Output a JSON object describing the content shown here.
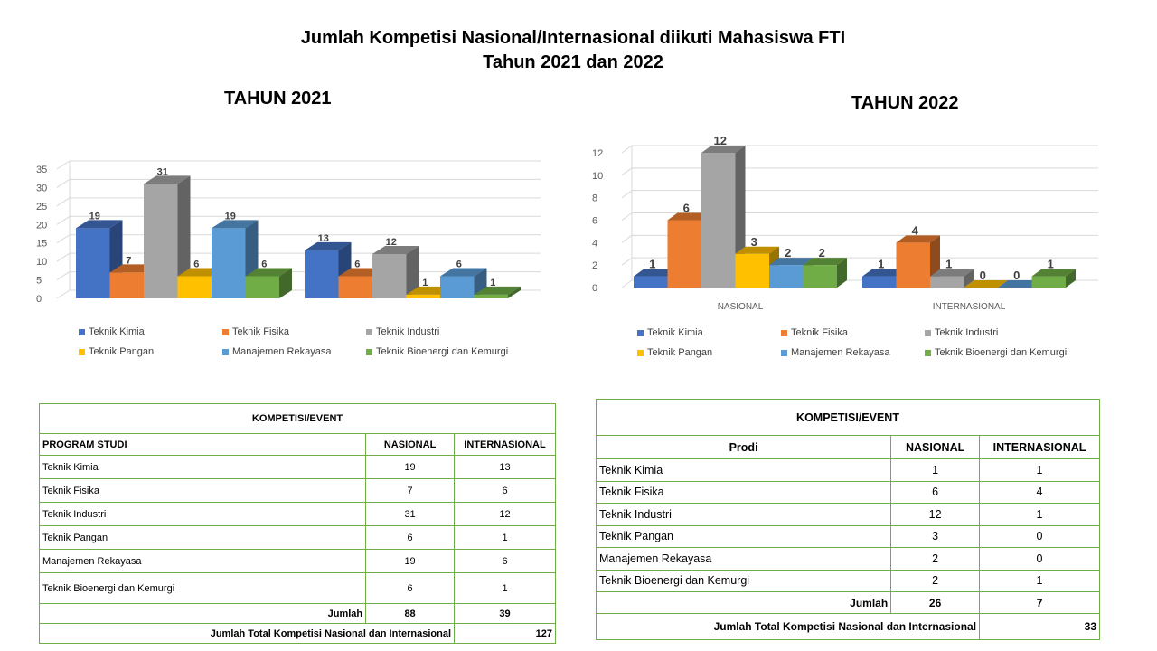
{
  "main_title": {
    "line1": "Jumlah Kompetisi Nasional/Internasional diikuti Mahasiswa FTI",
    "line2": "Tahun 2021 dan 2022"
  },
  "legend_labels": [
    "Teknik Kimia",
    "Teknik Fisika",
    "Teknik Industri",
    "Teknik Pangan",
    "Manajemen Rekayasa",
    "Teknik Bioenergi dan Kemurgi"
  ],
  "series_colors": [
    "#4472c4",
    "#ed7d31",
    "#a5a5a5",
    "#ffc000",
    "#5b9bd5",
    "#70ad47"
  ],
  "chart_data": [
    {
      "type": "bar",
      "title": "TAHUN 2021",
      "categories": [
        "",
        ""
      ],
      "series": [
        {
          "name": "Teknik Kimia",
          "values": [
            19,
            13
          ]
        },
        {
          "name": "Teknik Fisika",
          "values": [
            7,
            6
          ]
        },
        {
          "name": "Teknik Industri",
          "values": [
            31,
            12
          ]
        },
        {
          "name": "Teknik Pangan",
          "values": [
            6,
            1
          ]
        },
        {
          "name": "Manajemen Rekayasa",
          "values": [
            19,
            6
          ]
        },
        {
          "name": "Teknik Bioenergi dan Kemurgi",
          "values": [
            6,
            1
          ]
        }
      ],
      "ylim": [
        0,
        35
      ],
      "yticks": [
        0,
        5,
        10,
        15,
        20,
        25,
        30,
        35
      ],
      "grid": true,
      "legend": "bottom",
      "style": "3d-clustered-column"
    },
    {
      "type": "bar",
      "title": "TAHUN 2022",
      "categories": [
        "NASIONAL",
        "INTERNASIONAL"
      ],
      "series": [
        {
          "name": "Teknik Kimia",
          "values": [
            1,
            1
          ]
        },
        {
          "name": "Teknik Fisika",
          "values": [
            6,
            4
          ]
        },
        {
          "name": "Teknik Industri",
          "values": [
            12,
            1
          ]
        },
        {
          "name": "Teknik Pangan",
          "values": [
            3,
            0
          ]
        },
        {
          "name": "Manajemen Rekayasa",
          "values": [
            2,
            0
          ]
        },
        {
          "name": "Teknik Bioenergi dan Kemurgi",
          "values": [
            2,
            1
          ]
        }
      ],
      "ylim": [
        0,
        12
      ],
      "yticks": [
        0,
        2,
        4,
        6,
        8,
        10,
        12
      ],
      "grid": true,
      "legend": "bottom",
      "style": "3d-clustered-column"
    }
  ],
  "table_2021": {
    "header": "KOMPETISI/EVENT",
    "col_program": "PROGRAM STUDI",
    "col_nasional": "NASIONAL",
    "col_internasional": "INTERNASIONAL",
    "rows": [
      {
        "prodi": "Teknik Kimia",
        "nasional": "19",
        "internasional": "13"
      },
      {
        "prodi": "Teknik Fisika",
        "nasional": "7",
        "internasional": "6"
      },
      {
        "prodi": "Teknik Industri",
        "nasional": "31",
        "internasional": "12"
      },
      {
        "prodi": "Teknik Pangan",
        "nasional": "6",
        "internasional": "1"
      },
      {
        "prodi": "Manajemen Rekayasa",
        "nasional": "19",
        "internasional": "6"
      },
      {
        "prodi": "Teknik Bioenergi dan Kemurgi",
        "nasional": "6",
        "internasional": "1"
      }
    ],
    "jumlah_label": "Jumlah",
    "jumlah_nasional": "88",
    "jumlah_internasional": "39",
    "total_label": "Jumlah  Total  Kompetisi  Nasional  dan Internasional",
    "total_value": "127"
  },
  "table_2022": {
    "header": "KOMPETISI/EVENT",
    "col_program": "Prodi",
    "col_nasional": "NASIONAL",
    "col_internasional": "INTERNASIONAL",
    "rows": [
      {
        "prodi": "Teknik Kimia",
        "nasional": "1",
        "internasional": "1"
      },
      {
        "prodi": "Teknik Fisika",
        "nasional": "6",
        "internasional": "4"
      },
      {
        "prodi": "Teknik Industri",
        "nasional": "12",
        "internasional": "1"
      },
      {
        "prodi": "Teknik Pangan",
        "nasional": "3",
        "internasional": "0"
      },
      {
        "prodi": "Manajemen Rekayasa",
        "nasional": "2",
        "internasional": "0"
      },
      {
        "prodi": "Teknik Bioenergi dan Kemurgi",
        "nasional": "2",
        "internasional": "1"
      }
    ],
    "jumlah_label": "Jumlah",
    "jumlah_nasional": "26",
    "jumlah_internasional": "7",
    "total_label": "Jumlah Total Kompetisi Nasional dan Internasional",
    "total_value": "33"
  }
}
